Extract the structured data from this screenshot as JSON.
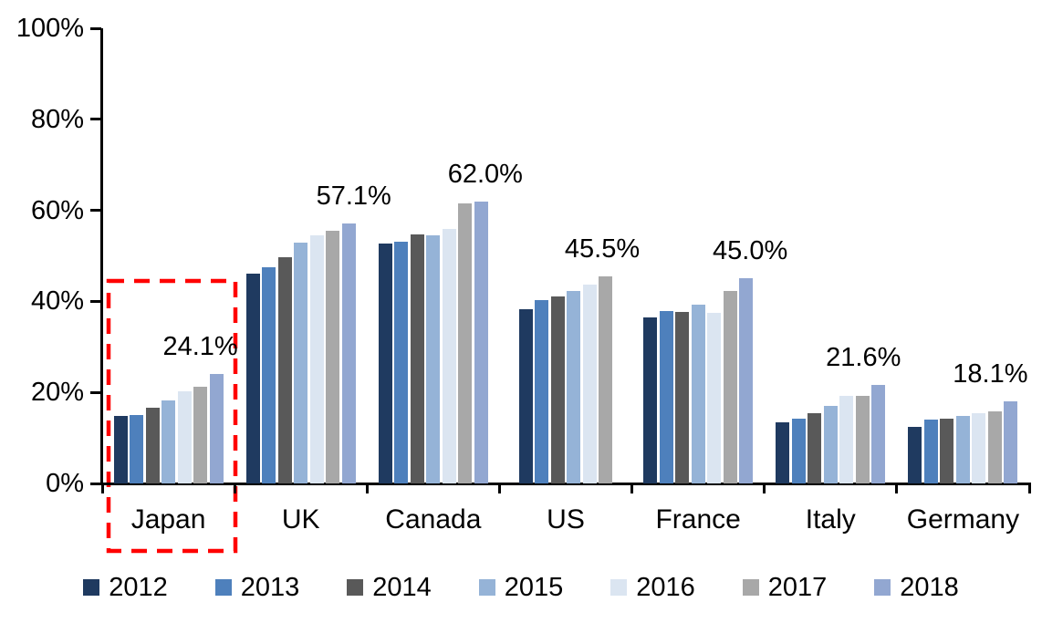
{
  "chart_data": {
    "type": "bar",
    "title": "",
    "xlabel": "",
    "ylabel": "",
    "ylim": [
      0,
      100
    ],
    "grid": false,
    "legend_position": "bottom",
    "yticks": [
      {
        "value": 0,
        "label": "0%"
      },
      {
        "value": 20,
        "label": "20%"
      },
      {
        "value": 40,
        "label": "40%"
      },
      {
        "value": 60,
        "label": "60%"
      },
      {
        "value": 80,
        "label": "80%"
      },
      {
        "value": 100,
        "label": "100%"
      }
    ],
    "categories": [
      "Japan",
      "UK",
      "Canada",
      "US",
      "France",
      "Italy",
      "Germany"
    ],
    "series": [
      {
        "name": "2012",
        "color": "#1F3A60",
        "values": [
          14.8,
          46.0,
          52.8,
          38.3,
          36.5,
          13.4,
          12.5
        ]
      },
      {
        "name": "2013",
        "color": "#4E80BC",
        "values": [
          15.0,
          47.5,
          53.2,
          40.2,
          37.8,
          14.3,
          14.0
        ]
      },
      {
        "name": "2014",
        "color": "#595959",
        "values": [
          16.7,
          49.7,
          54.7,
          41.0,
          37.7,
          15.5,
          14.3
        ]
      },
      {
        "name": "2015",
        "color": "#95B3D7",
        "values": [
          18.2,
          53.0,
          54.5,
          42.3,
          39.3,
          17.0,
          14.8
        ]
      },
      {
        "name": "2016",
        "color": "#DBE5F1",
        "values": [
          20.2,
          54.5,
          56.0,
          43.7,
          37.4,
          19.2,
          15.5
        ]
      },
      {
        "name": "2017",
        "color": "#A8A8A8",
        "values": [
          21.2,
          55.5,
          61.5,
          45.5,
          42.3,
          19.3,
          15.9
        ]
      },
      {
        "name": "2018",
        "color": "#92A7D1",
        "values": [
          24.1,
          57.1,
          62.0,
          null,
          45.0,
          21.6,
          18.1
        ]
      }
    ],
    "data_labels": [
      {
        "category": "Japan",
        "text": "24.1%",
        "dx": 35
      },
      {
        "category": "UK",
        "text": "57.1%",
        "dx": 58
      },
      {
        "category": "Canada",
        "text": "62.0%",
        "dx": 57
      },
      {
        "category": "US",
        "text": "45.5%",
        "dx": 40
      },
      {
        "category": "France",
        "text": "45.0%",
        "dx": 57
      },
      {
        "category": "Italy",
        "text": "21.6%",
        "dx": 36
      },
      {
        "category": "Germany",
        "text": "18.1%",
        "dx": 30
      }
    ],
    "highlight_box": {
      "category": "Japan",
      "color": "#FF0000",
      "style": "dashed"
    }
  }
}
